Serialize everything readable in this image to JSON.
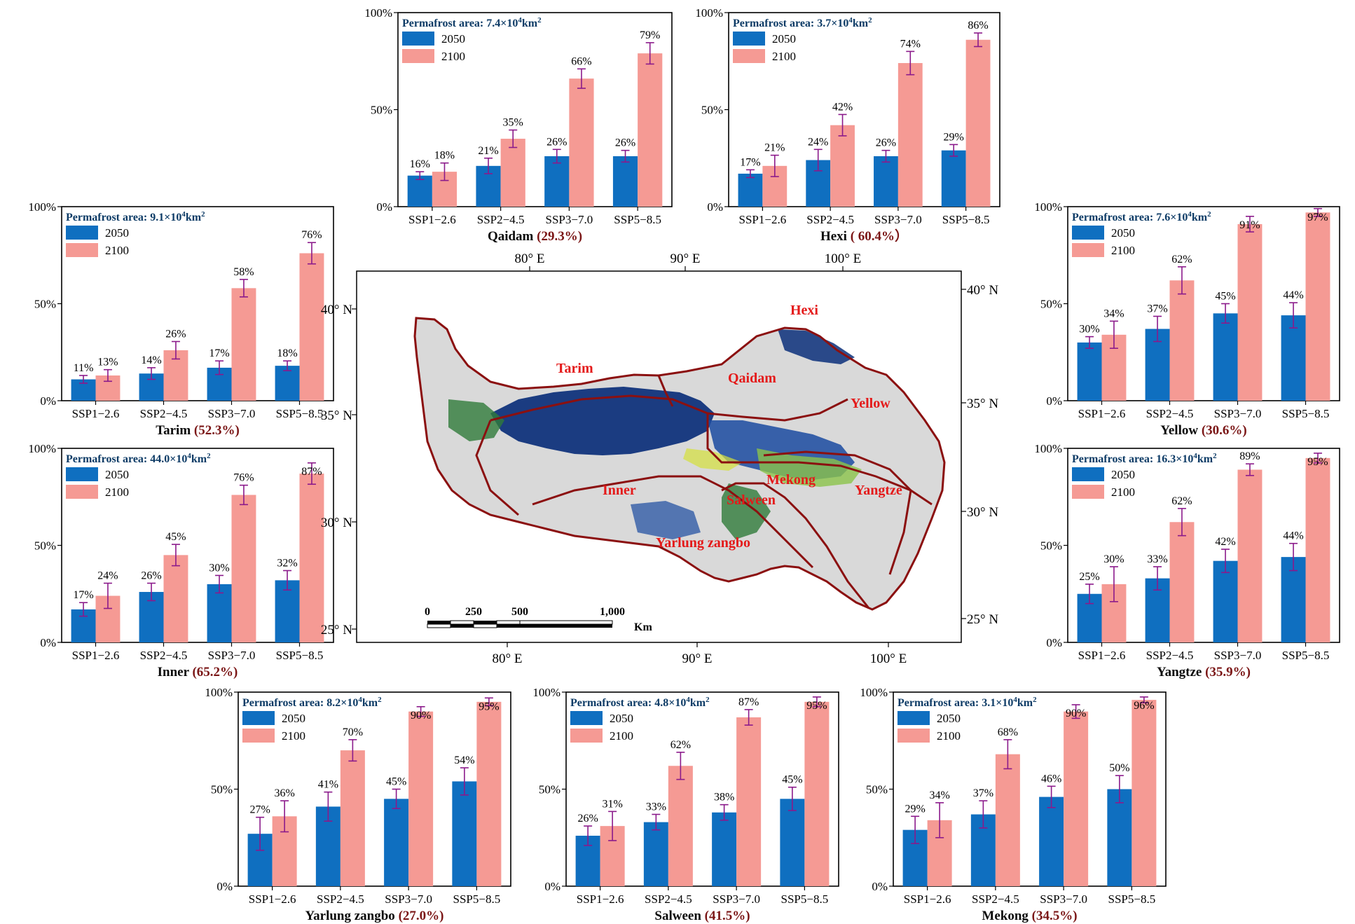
{
  "chart_data": [
    {
      "type": "bar",
      "region": "Qaidam",
      "share": "(29.3%)",
      "area_label": "Permafrost area: 7.4×10",
      "area_exp": "4",
      "area_unit": "km",
      "area_unit_exp": "2",
      "categories": [
        "SSP1−2.6",
        "SSP2−4.5",
        "SSP3−7.0",
        "SSP5−8.5"
      ],
      "series": [
        {
          "name": "2050",
          "values": [
            16,
            21,
            26,
            26
          ],
          "labels": [
            "16%",
            "21%",
            "26%",
            "26%"
          ],
          "err": [
            2,
            4,
            3.5,
            3
          ]
        },
        {
          "name": "2100",
          "values": [
            18,
            35,
            66,
            79
          ],
          "labels": [
            "18%",
            "35%",
            "66%",
            "79%"
          ],
          "err": [
            4.5,
            4.5,
            5,
            5.5
          ]
        }
      ],
      "yticks": [
        "0%",
        "50%",
        "100%"
      ],
      "ylim": [
        0,
        100
      ]
    },
    {
      "type": "bar",
      "region": "Hexi",
      "share": "( 60.4%）",
      "area_label": "Permafrost area: 3.7×10",
      "area_exp": "4",
      "area_unit": "km",
      "area_unit_exp": "2",
      "categories": [
        "SSP1−2.6",
        "SSP2−4.5",
        "SSP3−7.0",
        "SSP5−8.5"
      ],
      "series": [
        {
          "name": "2050",
          "values": [
            17,
            24,
            26,
            29
          ],
          "labels": [
            "17%",
            "24%",
            "26%",
            "29%"
          ],
          "err": [
            2,
            5.5,
            3,
            3
          ]
        },
        {
          "name": "2100",
          "values": [
            21,
            42,
            74,
            86
          ],
          "labels": [
            "21%",
            "42%",
            "74%",
            "86%"
          ],
          "err": [
            5.5,
            5.5,
            6,
            3.5
          ]
        }
      ],
      "yticks": [
        "0%",
        "50%",
        "100%"
      ],
      "ylim": [
        0,
        100
      ]
    },
    {
      "type": "bar",
      "region": "Tarim",
      "share": "(52.3%)",
      "area_label": "Permafrost area: 9.1×10",
      "area_exp": "4",
      "area_unit": "km",
      "area_unit_exp": "2",
      "categories": [
        "SSP1−2.6",
        "SSP2−4.5",
        "SSP3−7.0",
        "SSP5−8.5"
      ],
      "series": [
        {
          "name": "2050",
          "values": [
            11,
            14,
            17,
            18
          ],
          "labels": [
            "11%",
            "14%",
            "17%",
            "18%"
          ],
          "err": [
            2,
            3,
            3.5,
            2.5
          ]
        },
        {
          "name": "2100",
          "values": [
            13,
            26,
            58,
            76
          ],
          "labels": [
            "13%",
            "26%",
            "58%",
            "76%"
          ],
          "err": [
            3,
            4.5,
            4.5,
            5.5
          ]
        }
      ],
      "yticks": [
        "0%",
        "50%",
        "100%"
      ],
      "ylim": [
        0,
        100
      ]
    },
    {
      "type": "bar",
      "region": "Inner",
      "share": "(65.2%)",
      "area_label": "Permafrost area: 44.0×10",
      "area_exp": "4",
      "area_unit": "km",
      "area_unit_exp": "2",
      "categories": [
        "SSP1−2.6",
        "SSP2−4.5",
        "SSP3−7.0",
        "SSP5−8.5"
      ],
      "series": [
        {
          "name": "2050",
          "values": [
            17,
            26,
            30,
            32
          ],
          "labels": [
            "17%",
            "26%",
            "30%",
            "32%"
          ],
          "err": [
            3.5,
            4.5,
            4.5,
            5
          ]
        },
        {
          "name": "2100",
          "values": [
            24,
            45,
            76,
            87
          ],
          "labels": [
            "24%",
            "45%",
            "76%",
            "87%"
          ],
          "err": [
            6.5,
            5.5,
            5,
            5.5
          ]
        }
      ],
      "yticks": [
        "0%",
        "50%",
        "100%"
      ],
      "ylim": [
        0,
        100
      ]
    },
    {
      "type": "bar",
      "region": "Yellow",
      "share": "(30.6%)",
      "area_label": "Permafrost area: 7.6×10",
      "area_exp": "4",
      "area_unit": "km",
      "area_unit_exp": "2",
      "categories": [
        "SSP1−2.6",
        "SSP2−4.5",
        "SSP3−7.0",
        "SSP5−8.5"
      ],
      "series": [
        {
          "name": "2050",
          "values": [
            30,
            37,
            45,
            44
          ],
          "labels": [
            "30%",
            "37%",
            "45%",
            "44%"
          ],
          "err": [
            3,
            6.5,
            5,
            6.5
          ]
        },
        {
          "name": "2100",
          "values": [
            34,
            62,
            91,
            97
          ],
          "labels": [
            "34%",
            "62%",
            "91%",
            "97%"
          ],
          "err": [
            7,
            7,
            4,
            2
          ]
        }
      ],
      "yticks": [
        "0%",
        "50%",
        "100%"
      ],
      "ylim": [
        0,
        100
      ]
    },
    {
      "type": "bar",
      "region": "Yangtze",
      "share": "(35.9%)",
      "area_label": "Permafrost area: 16.3×10",
      "area_exp": "4",
      "area_unit": "km",
      "area_unit_exp": "2",
      "categories": [
        "SSP1−2.6",
        "SSP2−4.5",
        "SSP3−7.0",
        "SSP5−8.5"
      ],
      "series": [
        {
          "name": "2050",
          "values": [
            25,
            33,
            42,
            44
          ],
          "labels": [
            "25%",
            "33%",
            "42%",
            "44%"
          ],
          "err": [
            5,
            6,
            6,
            7
          ]
        },
        {
          "name": "2100",
          "values": [
            30,
            62,
            89,
            95
          ],
          "labels": [
            "30%",
            "62%",
            "89%",
            "95%"
          ],
          "err": [
            9,
            7,
            3,
            2.5
          ]
        }
      ],
      "yticks": [
        "0%",
        "50%",
        "100%"
      ],
      "ylim": [
        0,
        100
      ]
    },
    {
      "type": "bar",
      "region": "Yarlung zangbo",
      "share": "(27.0%)",
      "area_label": "Permafrost area: 8.2×10",
      "area_exp": "4",
      "area_unit": "km",
      "area_unit_exp": "2",
      "categories": [
        "SSP1−2.6",
        "SSP2−4.5",
        "SSP3−7.0",
        "SSP5−8.5"
      ],
      "series": [
        {
          "name": "2050",
          "values": [
            27,
            41,
            45,
            54
          ],
          "labels": [
            "27%",
            "41%",
            "45%",
            "54%"
          ],
          "err": [
            8.5,
            7.5,
            5,
            7
          ]
        },
        {
          "name": "2100",
          "values": [
            36,
            70,
            90,
            95
          ],
          "labels": [
            "36%",
            "70%",
            "90%",
            "95%"
          ],
          "err": [
            8,
            5.5,
            2.5,
            2
          ]
        }
      ],
      "yticks": [
        "0%",
        "50%",
        "100%"
      ],
      "ylim": [
        0,
        100
      ]
    },
    {
      "type": "bar",
      "region": "Salween",
      "share": "(41.5%)",
      "area_label": "Permafrost area: 4.8×10",
      "area_exp": "4",
      "area_unit": "km",
      "area_unit_exp": "2",
      "categories": [
        "SSP1−2.6",
        "SSP2−4.5",
        "SSP3−7.0",
        "SSP5−8.5"
      ],
      "series": [
        {
          "name": "2050",
          "values": [
            26,
            33,
            38,
            45
          ],
          "labels": [
            "26%",
            "33%",
            "38%",
            "45%"
          ],
          "err": [
            5,
            4,
            4,
            6
          ]
        },
        {
          "name": "2100",
          "values": [
            31,
            62,
            87,
            95
          ],
          "labels": [
            "31%",
            "62%",
            "87%",
            "95%"
          ],
          "err": [
            7.5,
            7,
            4,
            2.5
          ]
        }
      ],
      "yticks": [
        "0%",
        "50%",
        "100%"
      ],
      "ylim": [
        0,
        100
      ]
    },
    {
      "type": "bar",
      "region": "Mekong",
      "share": "(34.5%)",
      "area_label": "Permafrost area: 3.1×10",
      "area_exp": "4",
      "area_unit": "km",
      "area_unit_exp": "2",
      "categories": [
        "SSP1−2.6",
        "SSP2−4.5",
        "SSP3−7.0",
        "SSP5−8.5"
      ],
      "series": [
        {
          "name": "2050",
          "values": [
            29,
            37,
            46,
            50
          ],
          "labels": [
            "29%",
            "37%",
            "46%",
            "50%"
          ],
          "err": [
            7,
            7,
            5.5,
            7
          ]
        },
        {
          "name": "2100",
          "values": [
            34,
            68,
            90,
            96
          ],
          "labels": [
            "34%",
            "68%",
            "90%",
            "96%"
          ],
          "err": [
            9,
            7.5,
            3.5,
            1.5
          ]
        }
      ],
      "yticks": [
        "0%",
        "50%",
        "100%"
      ],
      "ylim": [
        0,
        100
      ]
    }
  ],
  "map": {
    "lon_top": [
      "80° E",
      "90° E",
      "100° E"
    ],
    "lon_bottom": [
      "80° E",
      "90° E",
      "100° E"
    ],
    "lat_left": [
      "40° N",
      "35° N",
      "30° N",
      "25° N"
    ],
    "lat_right": [
      "40° N",
      "35° N",
      "30° N",
      "25° N"
    ],
    "region_labels": [
      "Hexi",
      "Tarim",
      "Qaidam",
      "Yellow",
      "Mekong",
      "Inner",
      "Salween",
      "Yangtze",
      "Yarlung zangbo"
    ],
    "scale_ticks": [
      "0",
      "250",
      "500",
      "1,000"
    ],
    "scale_unit": "Km"
  },
  "colors": {
    "bar_2050": "#0f6fc0",
    "bar_2100": "#f59a94",
    "error_bar": "#8b1a8b",
    "region_title": "#0a0a0a",
    "share": "#7a1515",
    "area_text": "#0d3b66",
    "basin_outline": "#8b1010",
    "map_label": "#e41a1a"
  }
}
